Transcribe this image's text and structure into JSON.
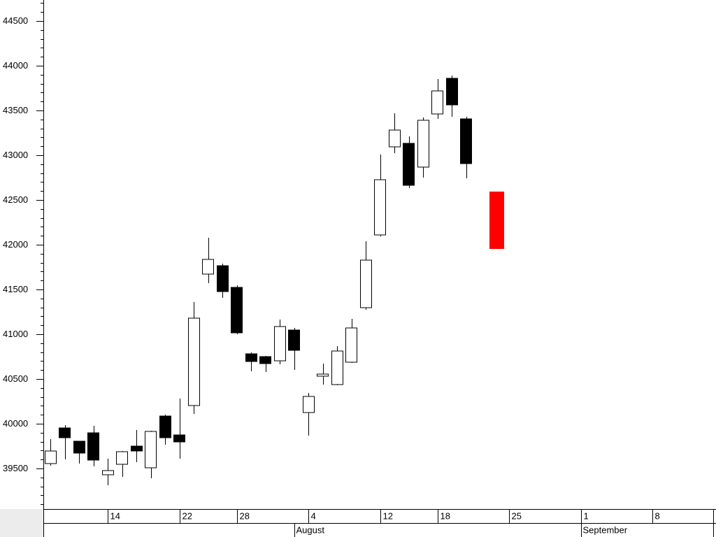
{
  "chart_data": {
    "type": "candlestick",
    "categories": [
      null,
      null,
      null,
      null,
      "14",
      null,
      null,
      null,
      null,
      "22",
      null,
      null,
      null,
      "28",
      null,
      null,
      null,
      null,
      "4",
      null,
      null,
      null,
      null,
      "12",
      null,
      null,
      null,
      "18",
      null,
      null,
      null,
      null,
      "25",
      null,
      null,
      null,
      null,
      "1",
      null,
      null,
      null,
      null,
      "8",
      null,
      null,
      null,
      null
    ],
    "months": [
      null,
      null,
      null,
      null,
      null,
      null,
      null,
      null,
      null,
      null,
      null,
      null,
      null,
      null,
      null,
      null,
      null,
      "August",
      null,
      null,
      null,
      null,
      null,
      null,
      null,
      null,
      null,
      null,
      null,
      null,
      null,
      null,
      null,
      null,
      null,
      null,
      null,
      "September",
      null,
      null,
      null,
      null,
      null,
      null,
      null,
      null,
      null
    ],
    "open": [
      39555,
      39953,
      39805,
      39898,
      39430,
      39547,
      39750,
      39508,
      40086,
      39875,
      40203,
      41672,
      41766,
      41523,
      40781,
      40750,
      40703,
      41047,
      40125,
      40531,
      40438,
      40688,
      41297,
      42109,
      43094,
      43133,
      42867,
      43461,
      43859,
      43406,
      null,
      null,
      null,
      null,
      null,
      null,
      null,
      null,
      null,
      null,
      null,
      null,
      null,
      null,
      null,
      null,
      null
    ],
    "high": [
      39828,
      39984,
      39810,
      39977,
      39609,
      39695,
      39930,
      39922,
      40102,
      40281,
      41359,
      42078,
      41789,
      41547,
      40797,
      40758,
      41164,
      41070,
      40344,
      40672,
      40867,
      41172,
      42039,
      43008,
      43469,
      43211,
      43422,
      43852,
      43891,
      43430,
      null,
      null,
      null,
      null,
      null,
      null,
      null,
      null,
      null,
      null,
      null,
      null,
      null,
      null,
      null,
      null,
      null
    ],
    "low": [
      39531,
      39602,
      39555,
      39523,
      39313,
      39406,
      39570,
      39391,
      39766,
      39609,
      40109,
      41570,
      41406,
      41000,
      40586,
      40578,
      40664,
      40602,
      39867,
      40438,
      40430,
      40680,
      41273,
      42094,
      43023,
      42633,
      42750,
      43406,
      43430,
      42742,
      null,
      null,
      null,
      null,
      null,
      null,
      null,
      null,
      null,
      null,
      null,
      null,
      null,
      null,
      null,
      null,
      null
    ],
    "close": [
      39695,
      39844,
      39672,
      39594,
      39477,
      39688,
      39695,
      39914,
      39844,
      39797,
      41180,
      41836,
      41477,
      41016,
      40695,
      40672,
      41086,
      40820,
      40305,
      40555,
      40813,
      41070,
      41828,
      42727,
      43281,
      42664,
      43391,
      43719,
      43563,
      42906,
      null,
      null,
      null,
      null,
      null,
      null,
      null,
      null,
      null,
      null,
      null,
      null,
      null,
      null,
      null,
      null,
      null
    ],
    "up_color": "#ffffff",
    "down_color": "#000000",
    "highlight": {
      "color": "#ff0000",
      "high": [
        null,
        null,
        null,
        null,
        null,
        null,
        null,
        null,
        null,
        null,
        null,
        null,
        null,
        null,
        null,
        null,
        null,
        null,
        null,
        null,
        null,
        null,
        null,
        null,
        null,
        null,
        null,
        null,
        null,
        null,
        null,
        42594,
        null,
        null,
        null,
        null,
        null,
        null,
        null,
        null,
        null,
        null,
        null,
        null,
        null,
        null,
        null
      ],
      "low": [
        null,
        null,
        null,
        null,
        null,
        null,
        null,
        null,
        null,
        null,
        null,
        null,
        null,
        null,
        null,
        null,
        null,
        null,
        null,
        null,
        null,
        null,
        null,
        null,
        null,
        null,
        null,
        null,
        null,
        null,
        null,
        41953,
        null,
        null,
        null,
        null,
        null,
        null,
        null,
        null,
        null,
        null,
        null,
        null,
        null,
        null,
        null
      ]
    },
    "ylim": [
      39047,
      44734
    ],
    "yticks": [
      39500,
      40000,
      40500,
      41000,
      41500,
      42000,
      42500,
      43000,
      43500,
      44000,
      44500
    ]
  }
}
